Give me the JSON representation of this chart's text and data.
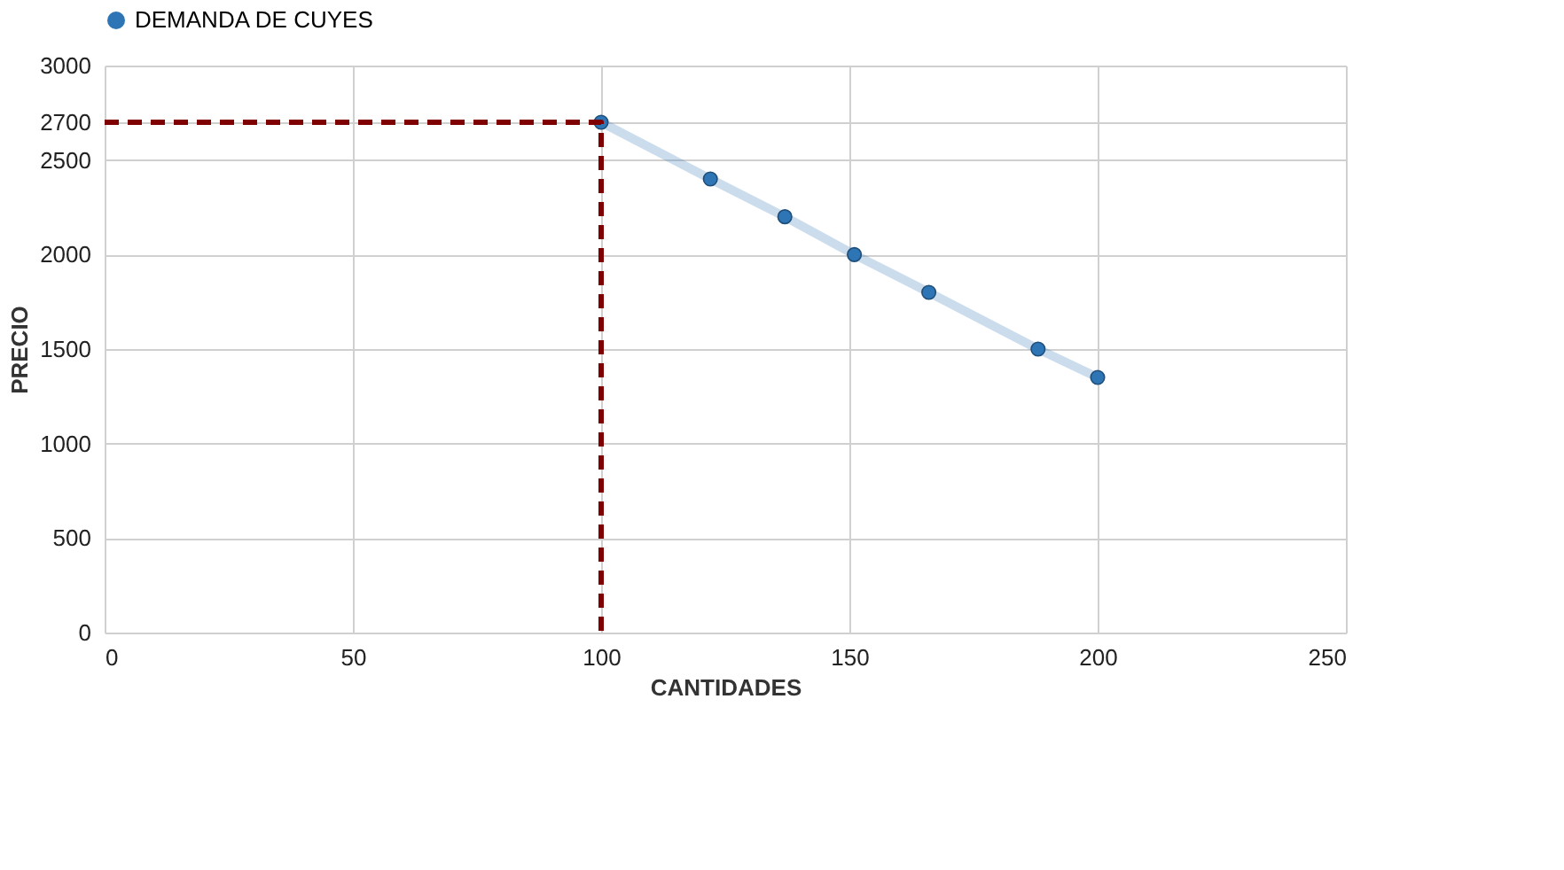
{
  "chart_data": {
    "type": "line",
    "xlabel": "CANTIDADES",
    "ylabel": "PRECIO",
    "xlim": [
      0,
      250
    ],
    "xticks": [
      0,
      50,
      100,
      150,
      200,
      250
    ],
    "ylim": [
      0,
      3000
    ],
    "yticks": [
      0,
      500,
      1000,
      1500,
      2000,
      2500,
      2700,
      3000
    ],
    "grid": true,
    "legend": "top",
    "marker": "circle",
    "series": [
      {
        "name": "DEMANDA DE CUYES",
        "color": "#2e75b6",
        "x": [
          100,
          122,
          137,
          151,
          166,
          188,
          200
        ],
        "values": [
          2700,
          2400,
          2200,
          2000,
          1800,
          1500,
          1350
        ]
      },
      {
        "type": "line",
        "color": "#7f0000",
        "line_style": "dashed",
        "marker": "none",
        "x": [
          0,
          100,
          100
        ],
        "values": [
          2700,
          2700,
          0
        ]
      }
    ]
  }
}
